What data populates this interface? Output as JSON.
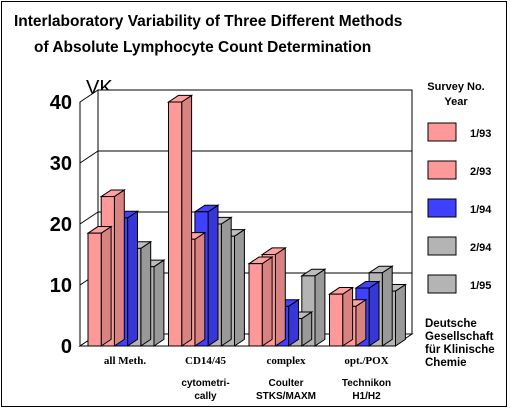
{
  "chart_data": {
    "type": "bar",
    "title": [
      "Interlaboratory Variability of Three Different Methods",
      "of Absolute Lymphocyte Count Determination"
    ],
    "ylabel": "VK",
    "ylim": [
      0,
      40
    ],
    "yticks": [
      "0",
      "10",
      "20",
      "30",
      "40"
    ],
    "categories": [
      {
        "name": "all Meth.",
        "sub": []
      },
      {
        "name": "CD14/45",
        "sub": [
          "cytometri-",
          "cally"
        ]
      },
      {
        "name": "complex",
        "sub": [
          "Coulter",
          "STKS/MAXM"
        ]
      },
      {
        "name": "opt./POX",
        "sub": [
          "Technikon",
          "H1/H2"
        ]
      }
    ],
    "legend_title": [
      "Survey No.",
      "Year"
    ],
    "series": [
      {
        "name": "1/93",
        "color": "#ff9999",
        "values": [
          18.5,
          40,
          13.5,
          8.5
        ]
      },
      {
        "name": "2/93",
        "color": "#ff9999",
        "values": [
          24.5,
          17.5,
          15,
          6.5
        ]
      },
      {
        "name": "1/94",
        "color": "#4040ff",
        "values": [
          21,
          22,
          6.5,
          9.5
        ]
      },
      {
        "name": "2/94",
        "color": "#b4b4b4",
        "values": [
          16,
          20,
          4.5,
          12
        ]
      },
      {
        "name": "1/95",
        "color": "#b4b4b4",
        "values": [
          13,
          18,
          11.5,
          9
        ]
      }
    ],
    "legend_placement": "right",
    "grid": true
  },
  "footnote": [
    "Deutsche",
    "Gesellschaft",
    "für Klinische",
    "Chemie"
  ]
}
